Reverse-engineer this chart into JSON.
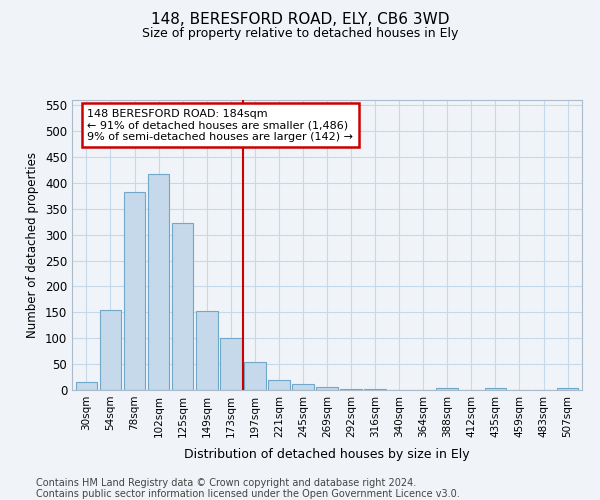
{
  "title": "148, BERESFORD ROAD, ELY, CB6 3WD",
  "subtitle": "Size of property relative to detached houses in Ely",
  "xlabel": "Distribution of detached houses by size in Ely",
  "ylabel": "Number of detached properties",
  "footnote1": "Contains HM Land Registry data © Crown copyright and database right 2024.",
  "footnote2": "Contains public sector information licensed under the Open Government Licence v3.0.",
  "bar_labels": [
    "30sqm",
    "54sqm",
    "78sqm",
    "102sqm",
    "125sqm",
    "149sqm",
    "173sqm",
    "197sqm",
    "221sqm",
    "245sqm",
    "269sqm",
    "292sqm",
    "316sqm",
    "340sqm",
    "364sqm",
    "388sqm",
    "412sqm",
    "435sqm",
    "459sqm",
    "483sqm",
    "507sqm"
  ],
  "bar_values": [
    15,
    155,
    382,
    418,
    323,
    152,
    100,
    54,
    19,
    11,
    5,
    1,
    1,
    0,
    0,
    4,
    0,
    4,
    0,
    0,
    4
  ],
  "bar_color": "#c5d9ea",
  "bar_edge_color": "#6fa8c8",
  "property_line_index": 6.5,
  "property_line_label": "148 BERESFORD ROAD: 184sqm",
  "annotation_line1": "← 91% of detached houses are smaller (1,486)",
  "annotation_line2": "9% of semi-detached houses are larger (142) →",
  "annotation_box_color": "#cc0000",
  "ylim": [
    0,
    560
  ],
  "yticks": [
    0,
    50,
    100,
    150,
    200,
    250,
    300,
    350,
    400,
    450,
    500,
    550
  ],
  "fig_bg": "#f0f4f8",
  "plot_bg": "#f0f4f8",
  "grid_color": "#c5d9ea",
  "title_fontsize": 11,
  "subtitle_fontsize": 9,
  "footnote_fontsize": 7
}
